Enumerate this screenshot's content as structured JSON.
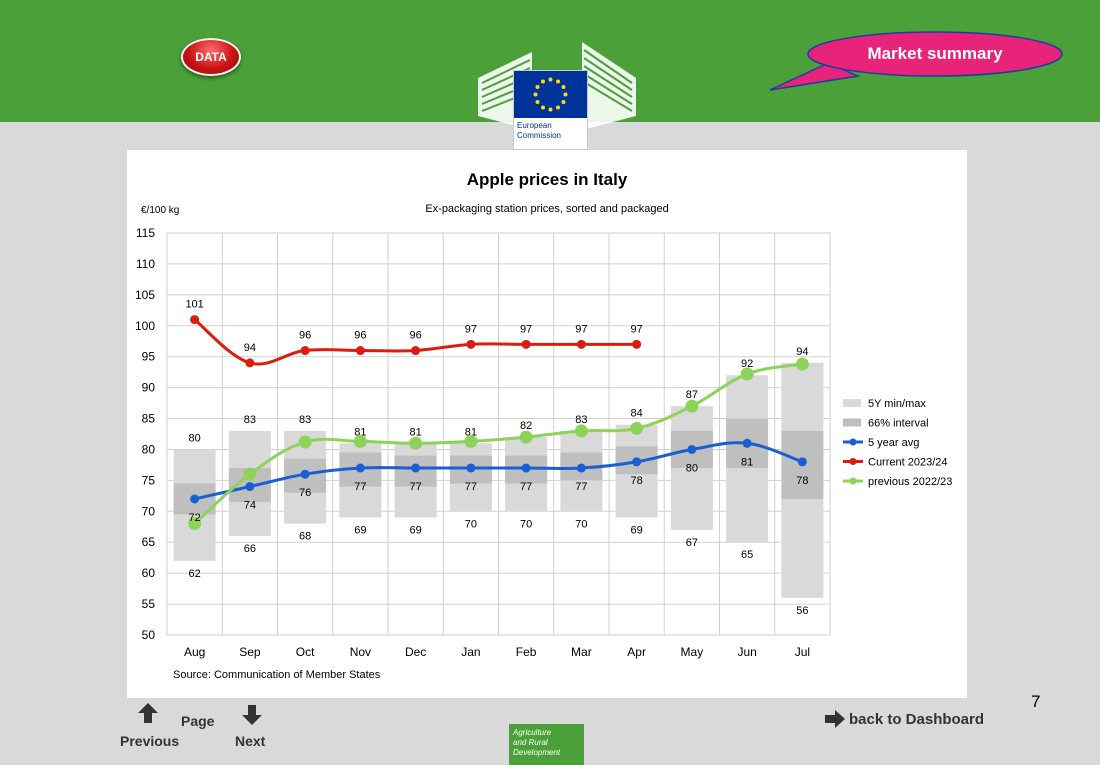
{
  "header": {
    "data_button": "DATA",
    "market_summary": "Market summary",
    "ec_logo_text": [
      "European",
      "Commission"
    ]
  },
  "chart_data": {
    "type": "line",
    "title": "Apple prices in Italy",
    "subtitle": "Ex-packaging station prices, sorted and packaged",
    "ylabel": "€/100 kg",
    "ylim": [
      50,
      115
    ],
    "yticks": [
      50,
      55,
      60,
      65,
      70,
      75,
      80,
      85,
      90,
      95,
      100,
      105,
      110,
      115
    ],
    "grid": true,
    "legend_position": "right",
    "categories": [
      "Aug",
      "Sep",
      "Oct",
      "Nov",
      "Dec",
      "Jan",
      "Feb",
      "Mar",
      "Apr",
      "May",
      "Jun",
      "Jul"
    ],
    "range_5y": {
      "name": "5Y min/max",
      "min": [
        62,
        66,
        68,
        69,
        69,
        70,
        70,
        70,
        69,
        67,
        65,
        56
      ],
      "max": [
        80,
        83,
        83,
        81,
        81,
        81,
        82,
        83,
        84,
        87,
        92,
        94
      ],
      "color": "#d9d9d9"
    },
    "interval_66": {
      "name": "66% interval",
      "low": [
        69.5,
        71.5,
        73,
        74,
        74,
        74.5,
        74.5,
        75,
        76,
        77,
        77,
        72
      ],
      "high": [
        74.5,
        77,
        78.5,
        79.5,
        79,
        79,
        79,
        79.5,
        80.5,
        83,
        85,
        83
      ],
      "color": "#bfbfbf"
    },
    "series": [
      {
        "name": "5 year avg",
        "color": "#1a5fd1",
        "values": [
          72,
          74,
          76,
          77,
          77,
          77,
          77,
          77,
          78,
          80,
          81,
          78
        ],
        "point_labels": [
          "72",
          "74",
          "76",
          "77",
          "77",
          "77",
          "77",
          "77",
          "78",
          "80",
          "81",
          "78"
        ]
      },
      {
        "name": "Current 2023/24",
        "color": "#dd1c10",
        "values": [
          101,
          94,
          96,
          96,
          96,
          97,
          97,
          97,
          97,
          null,
          null,
          null
        ],
        "point_labels": [
          "101",
          "94",
          "96",
          "96",
          "96",
          "97",
          "97",
          "97",
          "97",
          "",
          "",
          ""
        ]
      },
      {
        "name": "previous 2022/23",
        "color": "#8ed25a",
        "values": [
          68,
          76,
          81.2,
          81.3,
          81,
          81.3,
          82,
          83,
          83.4,
          87,
          92.2,
          93.8
        ],
        "point_labels": []
      }
    ],
    "min_labels": [
      "62",
      "66",
      "68",
      "69",
      "69",
      "70",
      "70",
      "70",
      "69",
      "67",
      "65",
      "56"
    ],
    "max_labels": [
      "80",
      "83",
      "83",
      "81",
      "81",
      "81",
      "82",
      "83",
      "84",
      "87",
      "92",
      "94"
    ],
    "source": "Source: Communication of Member States"
  },
  "footer": {
    "page_number": "7",
    "previous_label": "Previous",
    "page_label": "Page",
    "next_label": "Next",
    "dashboard_label": "back to Dashboard",
    "agri_text": [
      "Agriculture",
      "and Rural",
      "Development"
    ]
  }
}
